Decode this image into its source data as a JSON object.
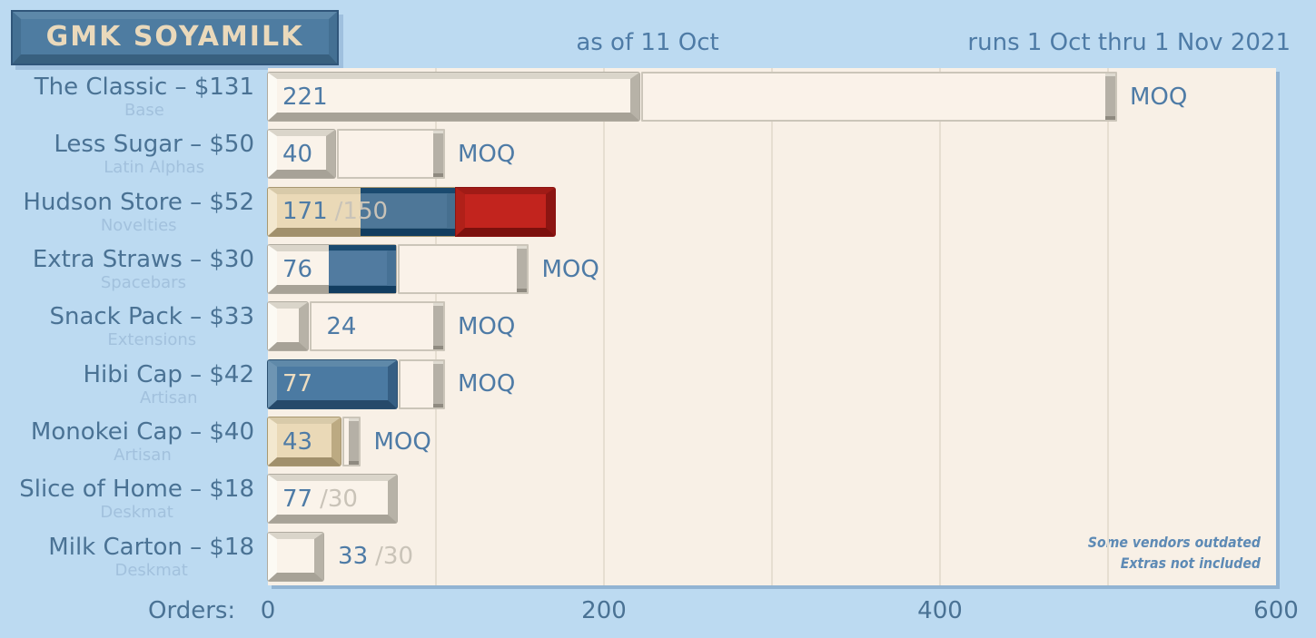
{
  "header": {
    "title": "GMK SOYAMILK",
    "as_of": "as of 11 Oct",
    "runs": "runs 1 Oct thru 1 Nov 2021"
  },
  "chart_data": {
    "type": "bar",
    "orientation": "horizontal",
    "title": "GMK SOYAMILK",
    "xlabel": "Orders:",
    "x_ticks": [
      0,
      200,
      400,
      600
    ],
    "xlim": [
      0,
      600
    ],
    "gridline_every": 100,
    "grid": true,
    "moq_label": "MOQ",
    "notes": [
      "Some vendors outdated",
      "Extras not included"
    ],
    "colors": {
      "background": "#bcdaf1",
      "plot_background": "#f8f0e6",
      "cream_keycap": "#faf3ea",
      "tan_keycap": "#ead9b7",
      "blue_keycap": "#4b7aa2",
      "red_keycap": "#c2241e",
      "accent_text": "#4e7ba6",
      "muted_text": "#c9c3b8"
    },
    "rows": [
      {
        "name": "The Classic – $131",
        "kit": "Base",
        "orders": 221,
        "moq": 500,
        "value_label": "221",
        "extra_label": null,
        "label_placement": "fill",
        "label_color": "blue",
        "base": {
          "style": "cream",
          "to": 221
        },
        "overlay": null,
        "overage": null,
        "outline": {
          "from": 221,
          "to": 500
        },
        "show_moq": true
      },
      {
        "name": "Less Sugar – $50",
        "kit": "Latin Alphas",
        "orders": 40,
        "moq": 100,
        "value_label": "40",
        "extra_label": null,
        "label_placement": "fill",
        "label_color": "blue",
        "base": {
          "style": "cream",
          "to": 40
        },
        "overlay": null,
        "overage": null,
        "outline": {
          "from": 40,
          "to": 100
        },
        "show_moq": true
      },
      {
        "name": "Hudson Store – $52",
        "kit": "Novelties",
        "orders": 171,
        "moq": 150,
        "value_label": "171",
        "extra_label": "/150",
        "label_placement": "fill",
        "label_color": "blue",
        "base": {
          "style": "tan",
          "to": 112
        },
        "overlay": {
          "from": 55,
          "to": 112
        },
        "overage": {
          "from": 112,
          "to": 171
        },
        "outline": null,
        "show_moq": false
      },
      {
        "name": "Extra Straws – $30",
        "kit": "Spacebars",
        "orders": 76,
        "moq": 150,
        "value_label": "76",
        "extra_label": null,
        "label_placement": "fill",
        "label_color": "blue",
        "base": {
          "style": "cream",
          "to": 76
        },
        "overlay": {
          "from": 36,
          "to": 76
        },
        "overage": null,
        "outline": {
          "from": 76,
          "to": 150
        },
        "show_moq": true
      },
      {
        "name": "Snack Pack – $33",
        "kit": "Extensions",
        "orders": 24,
        "moq": 100,
        "value_label": "24",
        "extra_label": null,
        "label_placement": "outline",
        "label_color": "blue",
        "base": {
          "style": "cream",
          "to": 24
        },
        "overlay": null,
        "overage": null,
        "outline": {
          "from": 24,
          "to": 100
        },
        "show_moq": true
      },
      {
        "name": "Hibi Cap – $42",
        "kit": "Artisan",
        "orders": 77,
        "moq": 100,
        "value_label": "77",
        "extra_label": null,
        "label_placement": "fill",
        "label_color": "cream",
        "base": {
          "style": "blue",
          "to": 77
        },
        "overlay": null,
        "overage": null,
        "outline": {
          "from": 77,
          "to": 100
        },
        "show_moq": true
      },
      {
        "name": "Monokei Cap – $40",
        "kit": "Artisan",
        "orders": 43,
        "moq": 50,
        "value_label": "43",
        "extra_label": null,
        "label_placement": "fill",
        "label_color": "blue",
        "base": {
          "style": "tan",
          "to": 43
        },
        "overlay": null,
        "overage": null,
        "outline": {
          "from": 43,
          "to": 50
        },
        "show_moq": true
      },
      {
        "name": "Slice of Home – $18",
        "kit": "Deskmat",
        "orders": 77,
        "moq": 30,
        "value_label": "77",
        "extra_label": "/30",
        "label_placement": "fill",
        "label_color": "blue",
        "base": {
          "style": "cream",
          "to": 77
        },
        "overlay": null,
        "overage": null,
        "outline": null,
        "show_moq": false
      },
      {
        "name": "Milk Carton – $18",
        "kit": "Deskmat",
        "orders": 33,
        "moq": 30,
        "value_label": "33",
        "extra_label": "/30",
        "label_placement": "outside",
        "label_color": "blue",
        "base": {
          "style": "cream",
          "to": 33
        },
        "overlay": null,
        "overage": null,
        "outline": null,
        "show_moq": false
      }
    ]
  }
}
